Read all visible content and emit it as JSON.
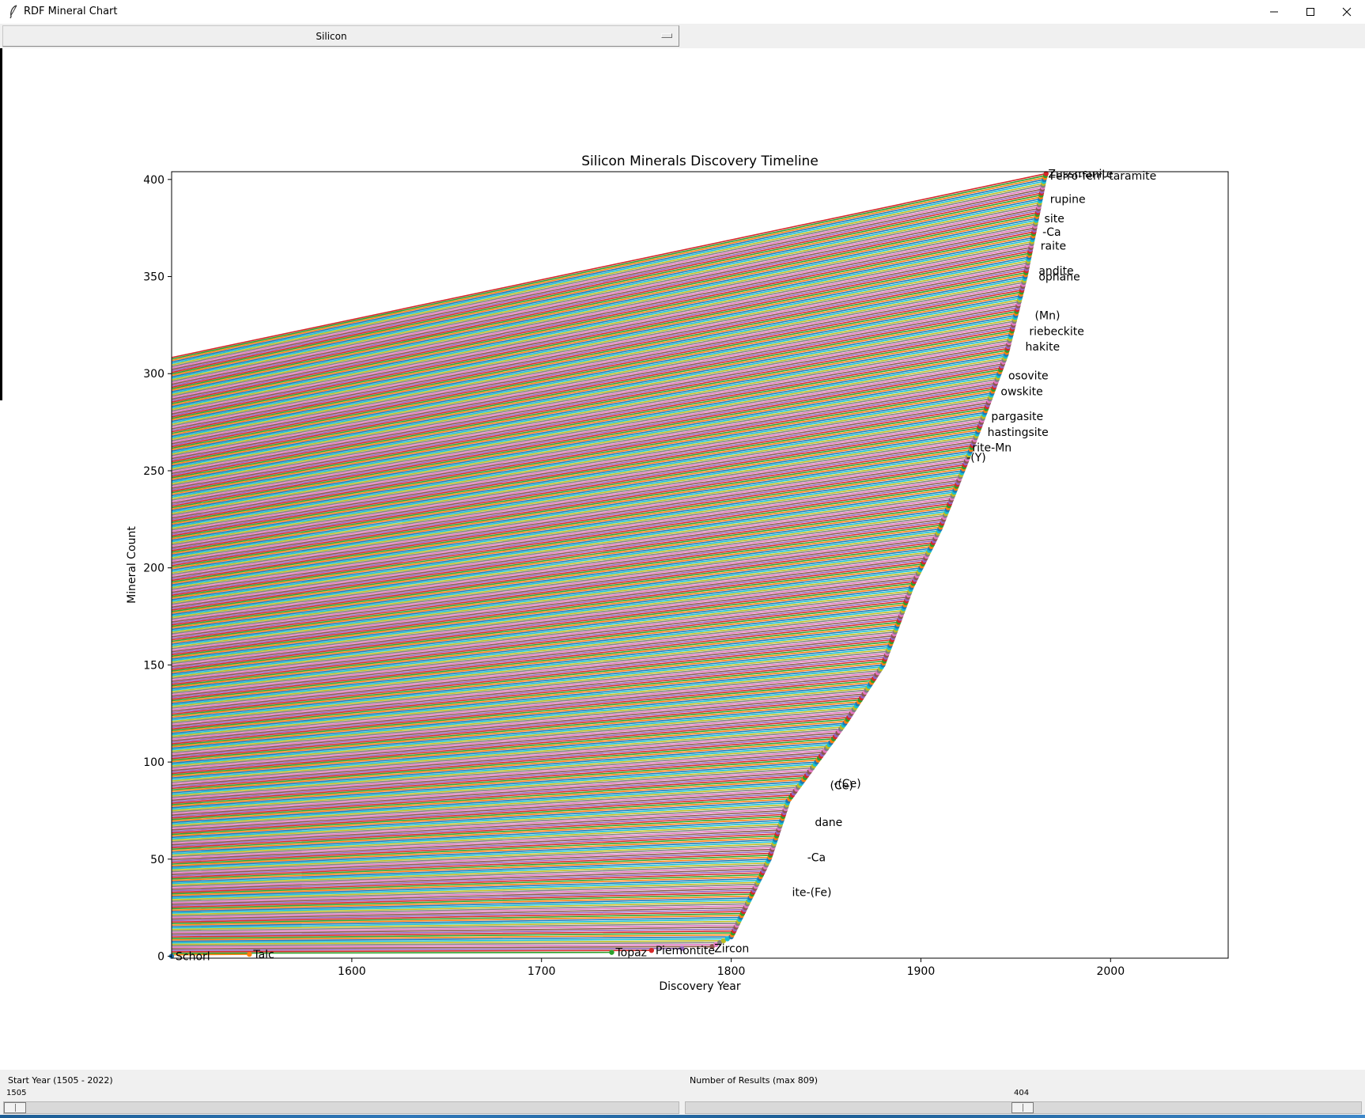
{
  "window": {
    "title": "RDF Mineral Chart"
  },
  "element_select": {
    "value": "Silicon"
  },
  "chart_data": {
    "type": "line",
    "title": "Silicon Minerals Discovery Timeline",
    "xlabel": "Discovery Year",
    "ylabel": "Mineral Count",
    "xlim": [
      1505,
      2062
    ],
    "ylim": [
      -1,
      404
    ],
    "xticks": [
      1600,
      1700,
      1800,
      1900,
      2000
    ],
    "yticks": [
      0,
      50,
      100,
      150,
      200,
      250,
      300,
      350,
      400
    ],
    "series_count": 404,
    "series_colors": [
      "#1f77b4",
      "#ff7f0e",
      "#2ca02c",
      "#d62728",
      "#9467bd",
      "#8c564b",
      "#e377c2",
      "#7f7f7f",
      "#bcbd22",
      "#17becf"
    ],
    "discovery_curve": [
      [
        1505,
        0
      ],
      [
        1546,
        1
      ],
      [
        1737,
        2
      ],
      [
        1758,
        3
      ],
      [
        1790,
        5
      ],
      [
        1800,
        10
      ],
      [
        1810,
        30
      ],
      [
        1820,
        50
      ],
      [
        1830,
        80
      ],
      [
        1845,
        100
      ],
      [
        1860,
        120
      ],
      [
        1880,
        150
      ],
      [
        1895,
        190
      ],
      [
        1910,
        220
      ],
      [
        1930,
        270
      ],
      [
        1945,
        310
      ],
      [
        1955,
        350
      ],
      [
        1965,
        400
      ],
      [
        1966,
        403
      ]
    ],
    "point_labels": [
      {
        "text": "Schorl",
        "x": 1505,
        "y": 0
      },
      {
        "text": "Talc",
        "x": 1546,
        "y": 1
      },
      {
        "text": "Topaz",
        "x": 1737,
        "y": 2
      },
      {
        "text": "Piemontite",
        "x": 1758,
        "y": 3
      },
      {
        "text": "Zircon",
        "x": 1789,
        "y": 4
      },
      {
        "text": "Zussmanite",
        "x": 1965,
        "y": 403
      },
      {
        "text": "Ferro-ferri-taramite",
        "x": 1966,
        "y": 402
      },
      {
        "text": "rupine",
        "x": 1966,
        "y": 390
      },
      {
        "text": "site",
        "x": 1963,
        "y": 380
      },
      {
        "text": "-Ca",
        "x": 1962,
        "y": 373
      },
      {
        "text": "raite",
        "x": 1961,
        "y": 366
      },
      {
        "text": "andite",
        "x": 1960,
        "y": 353
      },
      {
        "text": "ophane",
        "x": 1960,
        "y": 350
      },
      {
        "text": "(Mn)",
        "x": 1958,
        "y": 330
      },
      {
        "text": "riebeckite",
        "x": 1955,
        "y": 322
      },
      {
        "text": "hakite",
        "x": 1953,
        "y": 314
      },
      {
        "text": "osovite",
        "x": 1944,
        "y": 299
      },
      {
        "text": "owskite",
        "x": 1940,
        "y": 291
      },
      {
        "text": "pargasite",
        "x": 1935,
        "y": 278
      },
      {
        "text": "hastingsite",
        "x": 1933,
        "y": 270
      },
      {
        "text": "rite-Mn",
        "x": 1925,
        "y": 262
      },
      {
        "text": "-(Y)",
        "x": 1922,
        "y": 257
      },
      {
        "text": "-(Ce)",
        "x": 1852,
        "y": 89
      },
      {
        "text": "(Ce)",
        "x": 1850,
        "y": 88
      },
      {
        "text": "dane",
        "x": 1842,
        "y": 69
      },
      {
        "text": "-Ca",
        "x": 1838,
        "y": 51
      },
      {
        "text": "ite-(Fe)",
        "x": 1830,
        "y": 33
      }
    ]
  },
  "start_year": {
    "label": "Start Year (1505 - 2022)",
    "value": "1505",
    "fraction": 0.0
  },
  "result_count": {
    "label": "Number of Results (max 809)",
    "value": "404",
    "fraction": 0.499
  }
}
